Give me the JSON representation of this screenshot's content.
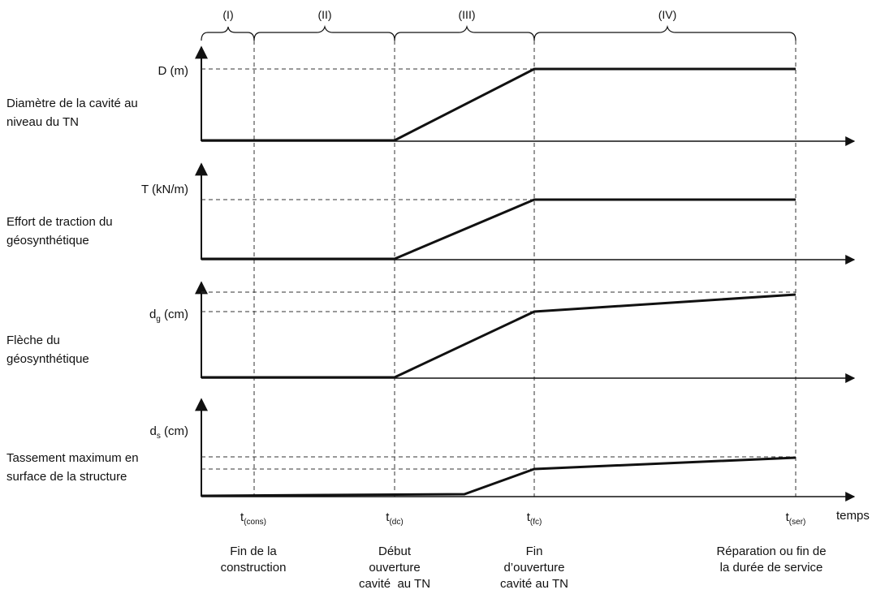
{
  "phases": [
    "(I)",
    "(II)",
    "(III)",
    "(IV)"
  ],
  "time_axis": {
    "label": "temps",
    "ticks": [
      {
        "base": "t",
        "sub": "(cons)",
        "caption": [
          "Fin de la",
          "construction"
        ]
      },
      {
        "base": "t",
        "sub": "(dc)",
        "caption": [
          "Début",
          "ouverture",
          "cavité  au TN"
        ]
      },
      {
        "base": "t",
        "sub": "(fc)",
        "caption": [
          "Fin",
          "d’ouverture",
          "cavité au TN"
        ]
      },
      {
        "base": "t",
        "sub": "(ser)",
        "caption": [
          "Réparation ou fin de",
          "la durée de service"
        ]
      }
    ]
  },
  "panels": [
    {
      "unit": {
        "base": "D",
        "sub": "",
        "rest": " (m)"
      },
      "description": [
        "Diamètre de la cavité au",
        "niveau du TN"
      ]
    },
    {
      "unit": {
        "base": "T",
        "sub": "",
        "rest": " (kN/m)"
      },
      "description": [
        "Effort de traction du",
        "géosynthétique"
      ]
    },
    {
      "unit": {
        "base": "d",
        "sub": "g",
        "rest": " (cm)"
      },
      "description": [
        "Flèche du",
        "géosynthétique"
      ]
    },
    {
      "unit": {
        "base": "d",
        "sub": "s",
        "rest": " (cm)"
      },
      "description": [
        "Tassement maximum en",
        "surface de la structure"
      ]
    }
  ],
  "colors": {
    "line": "#111111",
    "dashed": "#333333"
  }
}
